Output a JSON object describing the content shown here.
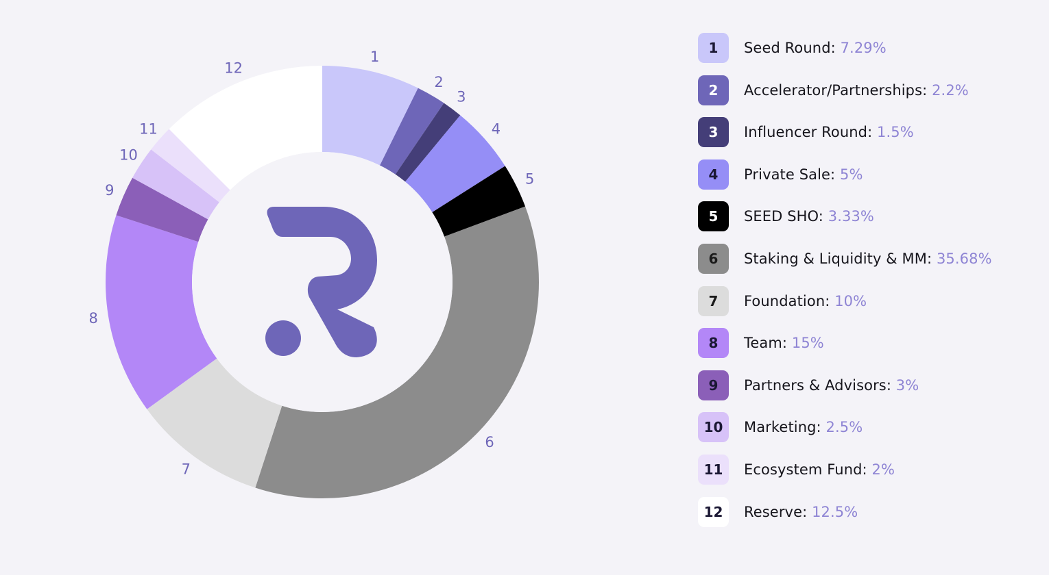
{
  "chart_data": {
    "type": "pie",
    "style": "donut",
    "title": "",
    "legend_position": "right",
    "center_logo": "letter-r-logo",
    "logo_color": "#6e66b8",
    "slices": [
      {
        "number": "1",
        "label": "Seed Round",
        "display_value": "7.29%",
        "value": 7.29,
        "color": "#c9c7fa",
        "text_color": "#1a1733"
      },
      {
        "number": "2",
        "label": "Accelerator/Partnerships",
        "display_value": "2.2%",
        "value": 2.2,
        "color": "#6e66b8",
        "text_color": "#ffffff"
      },
      {
        "number": "3",
        "label": "Influencer Round",
        "display_value": "1.5%",
        "value": 1.5,
        "color": "#443e78",
        "text_color": "#ffffff"
      },
      {
        "number": "4",
        "label": "Private Sale",
        "display_value": "5%",
        "value": 5,
        "color": "#958ef6",
        "text_color": "#1a1733"
      },
      {
        "number": "5",
        "label": "SEED SHO",
        "display_value": "3.33%",
        "value": 3.33,
        "color": "#000000",
        "text_color": "#ffffff"
      },
      {
        "number": "6",
        "label": "Staking & Liquidity & MM",
        "display_value": "35.68%",
        "value": 35.68,
        "color": "#8c8c8c",
        "text_color": "#1a1a1a"
      },
      {
        "number": "7",
        "label": "Foundation",
        "display_value": "10%",
        "value": 10,
        "color": "#dcdcdc",
        "text_color": "#1a1a1a"
      },
      {
        "number": "8",
        "label": "Team",
        "display_value": "15%",
        "value": 15,
        "color": "#b387f7",
        "text_color": "#1a1733"
      },
      {
        "number": "9",
        "label": "Partners & Advisors",
        "display_value": "3%",
        "value": 3,
        "color": "#8b5fb8",
        "text_color": "#1a1733"
      },
      {
        "number": "10",
        "label": "Marketing",
        "display_value": "2.5%",
        "value": 2.5,
        "color": "#d7c2f8",
        "text_color": "#1a1733"
      },
      {
        "number": "11",
        "label": "Ecosystem Fund",
        "display_value": "2%",
        "value": 2,
        "color": "#ebe0fb",
        "text_color": "#1a1733"
      },
      {
        "number": "12",
        "label": "Reserve",
        "display_value": "12.5%",
        "value": 12.5,
        "color": "#ffffff",
        "text_color": "#1a1733"
      }
    ]
  }
}
